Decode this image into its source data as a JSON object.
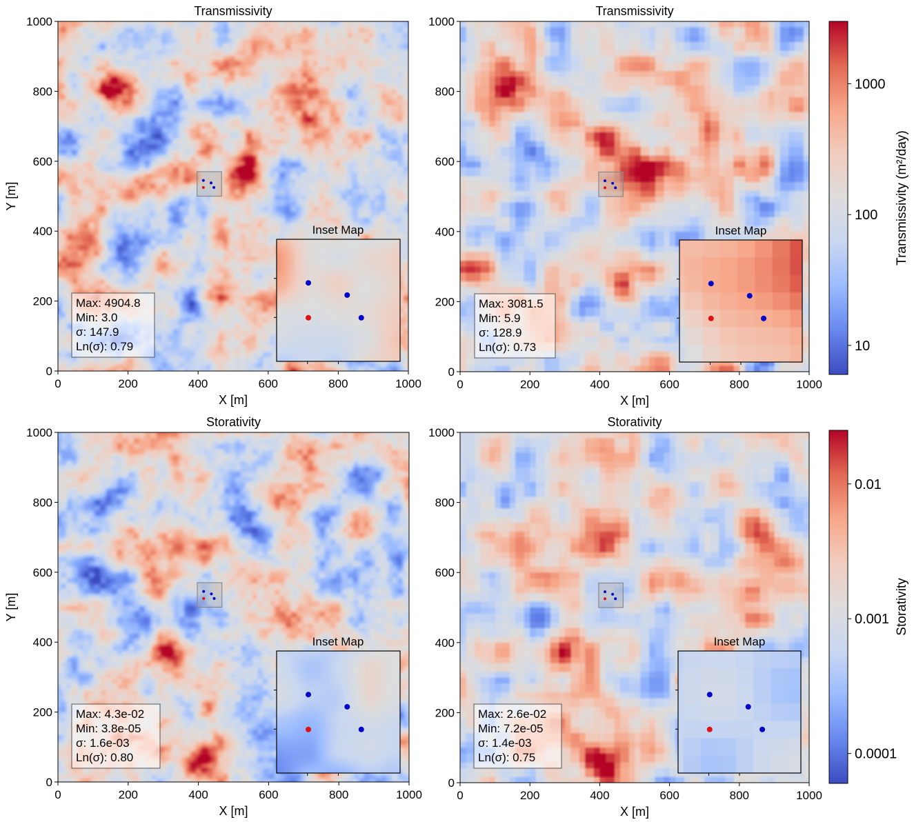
{
  "chart_data": [
    {
      "type": "heatmap",
      "id": "tl",
      "title": "Transmissivity",
      "xlabel": "X [m]",
      "ylabel": "Y [m]",
      "xlim": [
        0,
        1000
      ],
      "ylim": [
        0,
        1000
      ],
      "xticks": [
        "0",
        "200",
        "400",
        "600",
        "800",
        "1000"
      ],
      "yticks": [
        "0",
        "200",
        "400",
        "600",
        "800",
        "1000"
      ],
      "stats": [
        "Max: 4904.8",
        "Min: 3.0",
        "σ: 147.9",
        "Ln(σ): 0.79"
      ],
      "inset_title": "Inset Map",
      "highlight_region": {
        "x": [
          397,
          467
        ],
        "y": [
          500,
          570
        ]
      },
      "wells": [
        {
          "x": 415,
          "y": 545,
          "color": "#0000cc"
        },
        {
          "x": 437,
          "y": 538,
          "color": "#0000cc"
        },
        {
          "x": 415,
          "y": 525,
          "color": "#e01010"
        },
        {
          "x": 445,
          "y": 525,
          "color": "#0000cc"
        }
      ],
      "hotspots": [
        [
          150,
          810,
          0.5
        ],
        [
          430,
          660,
          0.45
        ],
        [
          505,
          570,
          0.6
        ],
        [
          300,
          540,
          0.35
        ],
        [
          220,
          520,
          0.3
        ],
        [
          330,
          310,
          0.3
        ],
        [
          30,
          300,
          0.45
        ],
        [
          460,
          220,
          0.4
        ],
        [
          700,
          760,
          0.25
        ],
        [
          870,
          640,
          0.25
        ],
        [
          560,
          860,
          0.25
        ]
      ],
      "coldspots": [
        [
          240,
          640,
          0.3
        ],
        [
          70,
          630,
          0.25
        ],
        [
          170,
          360,
          0.25
        ],
        [
          380,
          200,
          0.2
        ],
        [
          880,
          80,
          0.2
        ],
        [
          960,
          600,
          0.2
        ],
        [
          650,
          420,
          0.2
        ]
      ],
      "field_seed": 11,
      "pixelated": false
    },
    {
      "type": "heatmap",
      "id": "tr",
      "title": "Transmissivity",
      "xlabel": "X [m]",
      "ylabel": "",
      "xlim": [
        0,
        1000
      ],
      "ylim": [
        0,
        1000
      ],
      "xticks": [
        "0",
        "200",
        "400",
        "600",
        "800",
        "1000"
      ],
      "yticks": [
        "0",
        "200",
        "400",
        "600",
        "800",
        "1000"
      ],
      "stats": [
        "Max: 3081.5",
        "Min: 5.9",
        "σ: 128.9",
        "Ln(σ): 0.73"
      ],
      "inset_title": "Inset Map",
      "highlight_region": {
        "x": [
          397,
          467
        ],
        "y": [
          500,
          570
        ]
      },
      "wells": [
        {
          "x": 415,
          "y": 545,
          "color": "#0000cc"
        },
        {
          "x": 437,
          "y": 538,
          "color": "#0000cc"
        },
        {
          "x": 415,
          "y": 525,
          "color": "#e01010"
        },
        {
          "x": 445,
          "y": 525,
          "color": "#0000cc"
        }
      ],
      "hotspots": [
        [
          150,
          810,
          0.45
        ],
        [
          430,
          660,
          0.35
        ],
        [
          505,
          580,
          0.5
        ],
        [
          290,
          540,
          0.35
        ],
        [
          30,
          300,
          0.45
        ],
        [
          460,
          220,
          0.35
        ],
        [
          700,
          690,
          0.3
        ],
        [
          860,
          640,
          0.25
        ],
        [
          550,
          860,
          0.25
        ]
      ],
      "coldspots": [
        [
          240,
          640,
          0.25
        ],
        [
          70,
          630,
          0.2
        ],
        [
          170,
          360,
          0.2
        ],
        [
          380,
          200,
          0.2
        ],
        [
          880,
          80,
          0.2
        ],
        [
          950,
          480,
          0.2
        ]
      ],
      "field_seed": 23,
      "pixelated": true
    },
    {
      "type": "heatmap",
      "id": "bl",
      "title": "Storativity",
      "xlabel": "X [m]",
      "ylabel": "Y [m]",
      "xlim": [
        0,
        1000
      ],
      "ylim": [
        0,
        1000
      ],
      "xticks": [
        "0",
        "200",
        "400",
        "600",
        "800",
        "1000"
      ],
      "yticks": [
        "0",
        "200",
        "400",
        "600",
        "800",
        "1000"
      ],
      "stats": [
        "Max: 4.3e-02",
        "Min: 3.8e-05",
        "σ: 1.6e-03",
        "Ln(σ): 0.80"
      ],
      "inset_title": "Inset Map",
      "highlight_region": {
        "x": [
          397,
          467
        ],
        "y": [
          500,
          570
        ]
      },
      "wells": [
        {
          "x": 415,
          "y": 545,
          "color": "#0000cc"
        },
        {
          "x": 437,
          "y": 538,
          "color": "#0000cc"
        },
        {
          "x": 415,
          "y": 525,
          "color": "#e01010"
        },
        {
          "x": 445,
          "y": 525,
          "color": "#0000cc"
        }
      ],
      "hotspots": [
        [
          400,
          50,
          0.6
        ],
        [
          440,
          200,
          0.45
        ],
        [
          330,
          360,
          0.4
        ],
        [
          470,
          680,
          0.35
        ],
        [
          600,
          830,
          0.3
        ],
        [
          850,
          720,
          0.25
        ],
        [
          780,
          480,
          0.25
        ]
      ],
      "coldspots": [
        [
          260,
          460,
          0.45
        ],
        [
          150,
          800,
          0.35
        ],
        [
          100,
          600,
          0.3
        ],
        [
          540,
          760,
          0.25
        ],
        [
          900,
          880,
          0.25
        ],
        [
          50,
          370,
          0.25
        ]
      ],
      "field_seed": 37,
      "pixelated": false
    },
    {
      "type": "heatmap",
      "id": "br",
      "title": "Storativity",
      "xlabel": "X [m]",
      "ylabel": "",
      "xlim": [
        0,
        1000
      ],
      "ylim": [
        0,
        1000
      ],
      "xticks": [
        "0",
        "200",
        "400",
        "600",
        "800",
        "1000"
      ],
      "yticks": [
        "0",
        "200",
        "400",
        "600",
        "800",
        "1000"
      ],
      "stats": [
        "Max: 2.6e-02",
        "Min: 7.2e-05",
        "σ: 1.4e-03",
        "Ln(σ): 0.75"
      ],
      "inset_title": "Inset Map",
      "highlight_region": {
        "x": [
          397,
          467
        ],
        "y": [
          500,
          570
        ]
      },
      "wells": [
        {
          "x": 415,
          "y": 545,
          "color": "#0000cc"
        },
        {
          "x": 437,
          "y": 538,
          "color": "#0000cc"
        },
        {
          "x": 415,
          "y": 525,
          "color": "#e01010"
        },
        {
          "x": 445,
          "y": 525,
          "color": "#0000cc"
        }
      ],
      "hotspots": [
        [
          400,
          40,
          0.6
        ],
        [
          440,
          200,
          0.4
        ],
        [
          300,
          370,
          0.4
        ],
        [
          460,
          680,
          0.3
        ],
        [
          580,
          820,
          0.3
        ],
        [
          850,
          720,
          0.25
        ],
        [
          780,
          480,
          0.25
        ]
      ],
      "coldspots": [
        [
          240,
          460,
          0.4
        ],
        [
          150,
          800,
          0.3
        ],
        [
          100,
          600,
          0.3
        ],
        [
          540,
          760,
          0.25
        ],
        [
          900,
          880,
          0.2
        ]
      ],
      "field_seed": 53,
      "pixelated": true
    }
  ],
  "colorbars": [
    {
      "id": "cbar-transmissivity",
      "label": "Transmissivity (m²/day)",
      "scale": "log",
      "range": [
        6,
        3000
      ],
      "ticks": [
        {
          "value": 10,
          "label": "10"
        },
        {
          "value": 100,
          "label": "100"
        },
        {
          "value": 1000,
          "label": "1000"
        }
      ],
      "colormap": "coolwarm"
    },
    {
      "id": "cbar-storativity",
      "label": "Storativity",
      "scale": "log",
      "range": [
        6e-05,
        0.025
      ],
      "ticks": [
        {
          "value": 0.0001,
          "label": "0.0001"
        },
        {
          "value": 0.001,
          "label": "0.001"
        },
        {
          "value": 0.01,
          "label": "0.01"
        }
      ],
      "colormap": "coolwarm"
    }
  ],
  "colors": {
    "coolwarm": [
      "#3b4cc0",
      "#6788ee",
      "#9abbff",
      "#c9d7f0",
      "#dddddd",
      "#f1cdbf",
      "#f7a789",
      "#e26952",
      "#b40426"
    ]
  }
}
